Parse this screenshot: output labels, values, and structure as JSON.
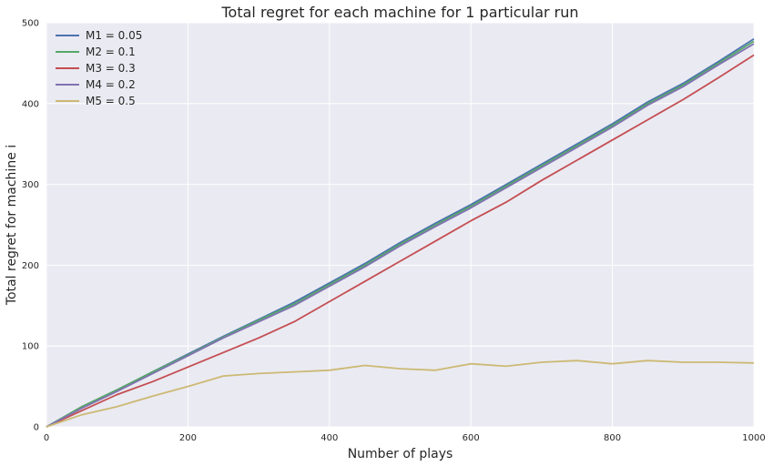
{
  "chart_data": {
    "type": "line",
    "title": "Total regret for each machine for 1 particular run",
    "xlabel": "Number of plays",
    "ylabel": "Total regret for machine i",
    "xlim": [
      0,
      1000
    ],
    "ylim": [
      0,
      500
    ],
    "xticks": [
      0,
      200,
      400,
      600,
      800,
      1000
    ],
    "yticks": [
      0,
      100,
      200,
      300,
      400,
      500
    ],
    "grid": true,
    "legend_position": "top-left",
    "x": [
      0,
      50,
      100,
      150,
      200,
      250,
      300,
      350,
      400,
      450,
      500,
      550,
      600,
      650,
      700,
      750,
      800,
      850,
      900,
      950,
      1000
    ],
    "series": [
      {
        "name": "M1 = 0.05",
        "color": "#4C72B0",
        "values": [
          0,
          24,
          45,
          68,
          90,
          112,
          133,
          154,
          178,
          202,
          228,
          252,
          275,
          300,
          325,
          350,
          375,
          402,
          425,
          452,
          480
        ]
      },
      {
        "name": "M2 = 0.1",
        "color": "#55A868",
        "values": [
          0,
          25,
          46,
          68,
          89,
          111,
          132,
          152,
          176,
          200,
          226,
          250,
          273,
          298,
          323,
          348,
          373,
          400,
          423,
          450,
          477
        ]
      },
      {
        "name": "M3 = 0.3",
        "color": "#C44E52",
        "values": [
          0,
          20,
          40,
          56,
          74,
          92,
          110,
          130,
          155,
          180,
          205,
          230,
          255,
          278,
          305,
          330,
          355,
          380,
          405,
          432,
          460
        ]
      },
      {
        "name": "M4 = 0.2",
        "color": "#8172B2",
        "values": [
          0,
          23,
          44,
          66,
          88,
          110,
          130,
          150,
          174,
          198,
          224,
          248,
          271,
          296,
          321,
          346,
          371,
          398,
          421,
          448,
          474
        ]
      },
      {
        "name": "M5 = 0.5",
        "color": "#CCB974",
        "values": [
          0,
          15,
          25,
          38,
          50,
          63,
          66,
          68,
          70,
          76,
          72,
          70,
          78,
          75,
          80,
          82,
          78,
          82,
          80,
          80,
          79
        ]
      }
    ]
  },
  "colors": {
    "plot_background": "#EAEAF2",
    "grid": "#FFFFFF",
    "text": "#262626"
  }
}
